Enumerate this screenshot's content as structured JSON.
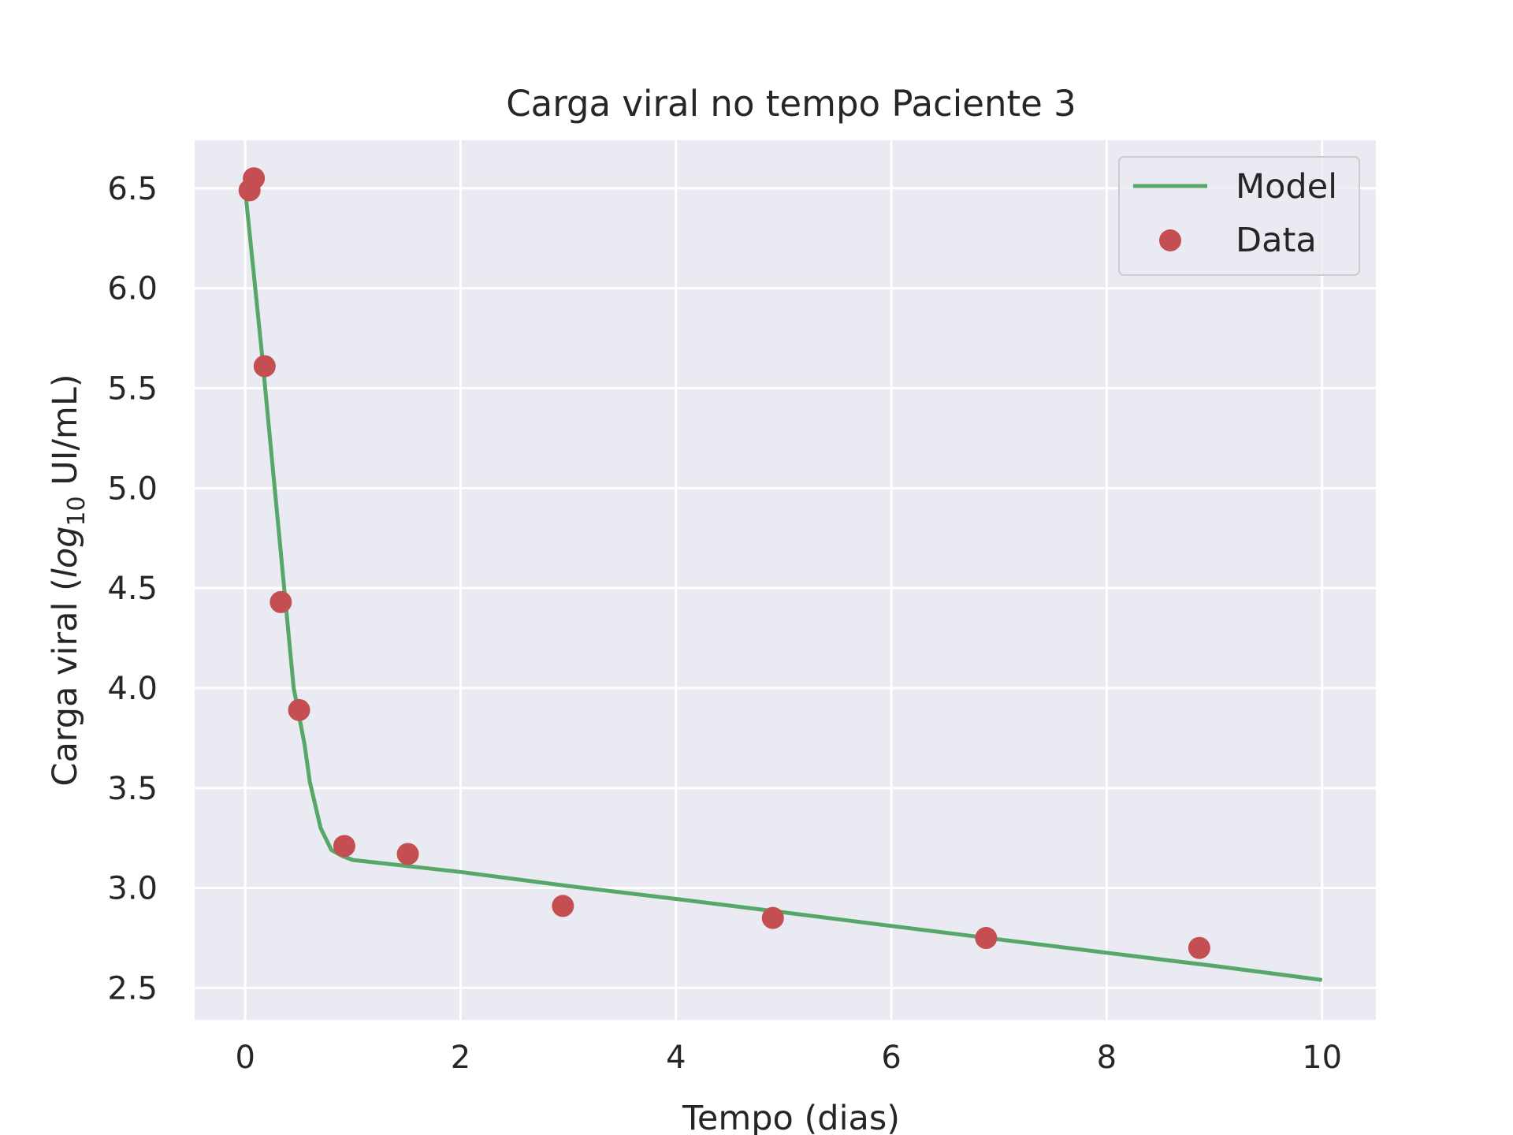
{
  "chart_data": {
    "type": "line",
    "title": "Carga viral no tempo Paciente 3",
    "xlabel": "Tempo (dias)",
    "ylabel_prefix": "Carga viral (",
    "ylabel_log": "log",
    "ylabel_sub": "10",
    "ylabel_suffix": " UI/mL)",
    "xlim": [
      -0.47,
      10.5
    ],
    "ylim": [
      2.34,
      6.74
    ],
    "xticks": [
      0,
      2,
      4,
      6,
      8,
      10
    ],
    "yticks": [
      2.5,
      3.0,
      3.5,
      4.0,
      4.5,
      5.0,
      5.5,
      6.0,
      6.5
    ],
    "xtick_labels": [
      "0",
      "2",
      "4",
      "6",
      "8",
      "10"
    ],
    "ytick_labels": [
      "2.5",
      "3.0",
      "3.5",
      "4.0",
      "4.5",
      "5.0",
      "5.5",
      "6.0",
      "6.5"
    ],
    "grid": true,
    "legend_position": "top-right",
    "series": [
      {
        "name": "Model",
        "kind": "line",
        "color": "#55a868",
        "x": [
          0.0,
          0.15,
          0.3,
          0.45,
          0.55,
          0.6,
          0.7,
          0.8,
          0.9,
          1.0,
          1.5,
          2.0,
          3.0,
          4.0,
          5.0,
          6.0,
          7.0,
          8.0,
          9.0,
          10.0
        ],
        "y": [
          6.49,
          5.7,
          4.85,
          4.0,
          3.72,
          3.53,
          3.3,
          3.19,
          3.16,
          3.14,
          3.11,
          3.08,
          3.01,
          2.945,
          2.878,
          2.81,
          2.743,
          2.676,
          2.61,
          2.54
        ]
      },
      {
        "name": "Data",
        "kind": "scatter",
        "color": "#c44e52",
        "x": [
          0.04,
          0.08,
          0.18,
          0.33,
          0.5,
          0.92,
          1.51,
          2.95,
          4.9,
          6.88,
          8.86
        ],
        "y": [
          6.49,
          6.55,
          5.61,
          4.43,
          3.89,
          3.21,
          3.17,
          2.91,
          2.85,
          2.75,
          2.7
        ]
      }
    ]
  }
}
